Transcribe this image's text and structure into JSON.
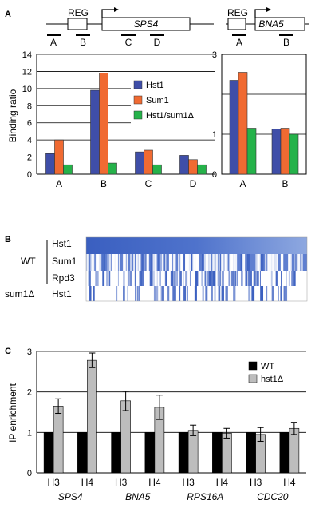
{
  "panels": {
    "a": "A",
    "b": "B",
    "c": "C"
  },
  "gene_maps": [
    {
      "reg_label": "REG",
      "gene_label": "SPS4",
      "probes": [
        "A",
        "B",
        "C",
        "D"
      ]
    },
    {
      "reg_label": "REG",
      "gene_label": "BNA5",
      "probes": [
        "A",
        "B"
      ]
    }
  ],
  "heatmap": {
    "row_labels": [
      "Hst1",
      "Sum1",
      "Rpd3",
      "Hst1"
    ],
    "group_labels": [
      "WT",
      "sum1Δ"
    ]
  },
  "colors": {
    "hst1": "#3f4ea8",
    "sum1": "#f06a32",
    "hst1_sum1": "#25b24a",
    "wt": "#000000",
    "hst1d": "#bdbdbd",
    "heat": "#3a5fc0"
  },
  "chart_data": [
    {
      "id": "A-left",
      "type": "bar",
      "categories": [
        "A",
        "B",
        "C",
        "D"
      ],
      "series": [
        {
          "name": "Hst1",
          "values": [
            2.4,
            9.8,
            2.6,
            2.2
          ]
        },
        {
          "name": "Sum1",
          "values": [
            4.0,
            11.8,
            2.8,
            1.7
          ]
        },
        {
          "name": "Hst1/sum1Δ",
          "values": [
            1.1,
            1.3,
            1.1,
            1.1
          ]
        }
      ],
      "ylabel": "Binding ratio",
      "ylim": [
        0,
        14
      ],
      "yticks": [
        "0",
        "2",
        "4",
        "6",
        "8",
        "10",
        "12",
        "14"
      ],
      "grid": true,
      "legend": "top-right"
    },
    {
      "id": "A-right",
      "type": "bar",
      "categories": [
        "A",
        "B"
      ],
      "series": [
        {
          "name": "Hst1",
          "values": [
            2.35,
            1.13
          ]
        },
        {
          "name": "Sum1",
          "values": [
            2.55,
            1.15
          ]
        },
        {
          "name": "Hst1/sum1Δ",
          "values": [
            1.15,
            1.0
          ]
        }
      ],
      "ylim": [
        0,
        3
      ],
      "yticks": [
        "0",
        "1",
        "2",
        "3"
      ],
      "grid": true
    },
    {
      "id": "C",
      "type": "bar",
      "categories": [
        "H3",
        "H4",
        "H3",
        "H4",
        "H3",
        "H4",
        "H3",
        "H4"
      ],
      "groups": [
        "SPS4",
        "BNA5",
        "RPS16A",
        "CDC20"
      ],
      "series": [
        {
          "name": "WT",
          "values": [
            1.0,
            1.0,
            1.0,
            1.0,
            1.0,
            1.0,
            1.0,
            1.0
          ]
        },
        {
          "name": "hst1Δ",
          "values": [
            1.65,
            2.78,
            1.78,
            1.62,
            1.05,
            0.98,
            0.95,
            1.1
          ],
          "errors": [
            0.18,
            0.18,
            0.24,
            0.3,
            0.13,
            0.12,
            0.17,
            0.15
          ]
        }
      ],
      "ylabel": "IP enrichment",
      "ylim": [
        0,
        3
      ],
      "yticks": [
        "0",
        "1",
        "2",
        "3"
      ],
      "grid": true,
      "legend": "top-right"
    }
  ]
}
